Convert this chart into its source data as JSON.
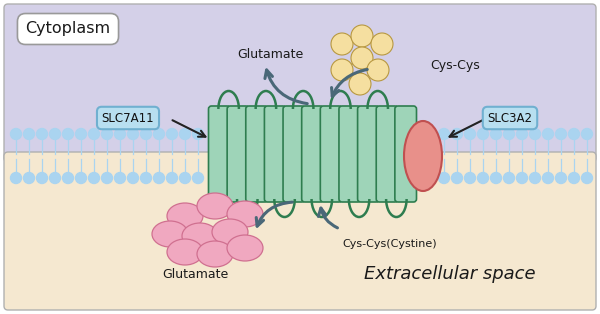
{
  "fig_width": 6.0,
  "fig_height": 3.14,
  "dpi": 100,
  "bg_color": "#ffffff",
  "cytoplasm_color": "#d4d0e8",
  "extracellular_color": "#f5e8d0",
  "membrane_lipid_color": "#aad4f0",
  "membrane_body_color": "#9ed4b8",
  "membrane_outline_color": "#2e7d4f",
  "protein_ellipse_color": "#e8908a",
  "protein_ellipse_outline": "#c05050",
  "arrow_color": "#4a6878",
  "slc_box_color": "#b8dff0",
  "slc_box_edge": "#70b0d0",
  "cys_node_color": "#f5dfa0",
  "cys_node_outline": "#b89840",
  "glutamate_node_color": "#f0a8c0",
  "glutamate_node_outline": "#d07090",
  "text_color": "#1a1a1a",
  "cytoplasm_label": "Cytoplasm",
  "extracellular_label": "Extracellular space",
  "glutamate_top_label": "Glutamate",
  "glutamate_bottom_label": "Glutamate",
  "cys_cys_top_label": "Cys-Cys",
  "cys_cys_bottom_label": "Cys-Cys(Cystine)",
  "slc7a11_label": "SLC7A11",
  "slc3a2_label": "SLC3A2"
}
